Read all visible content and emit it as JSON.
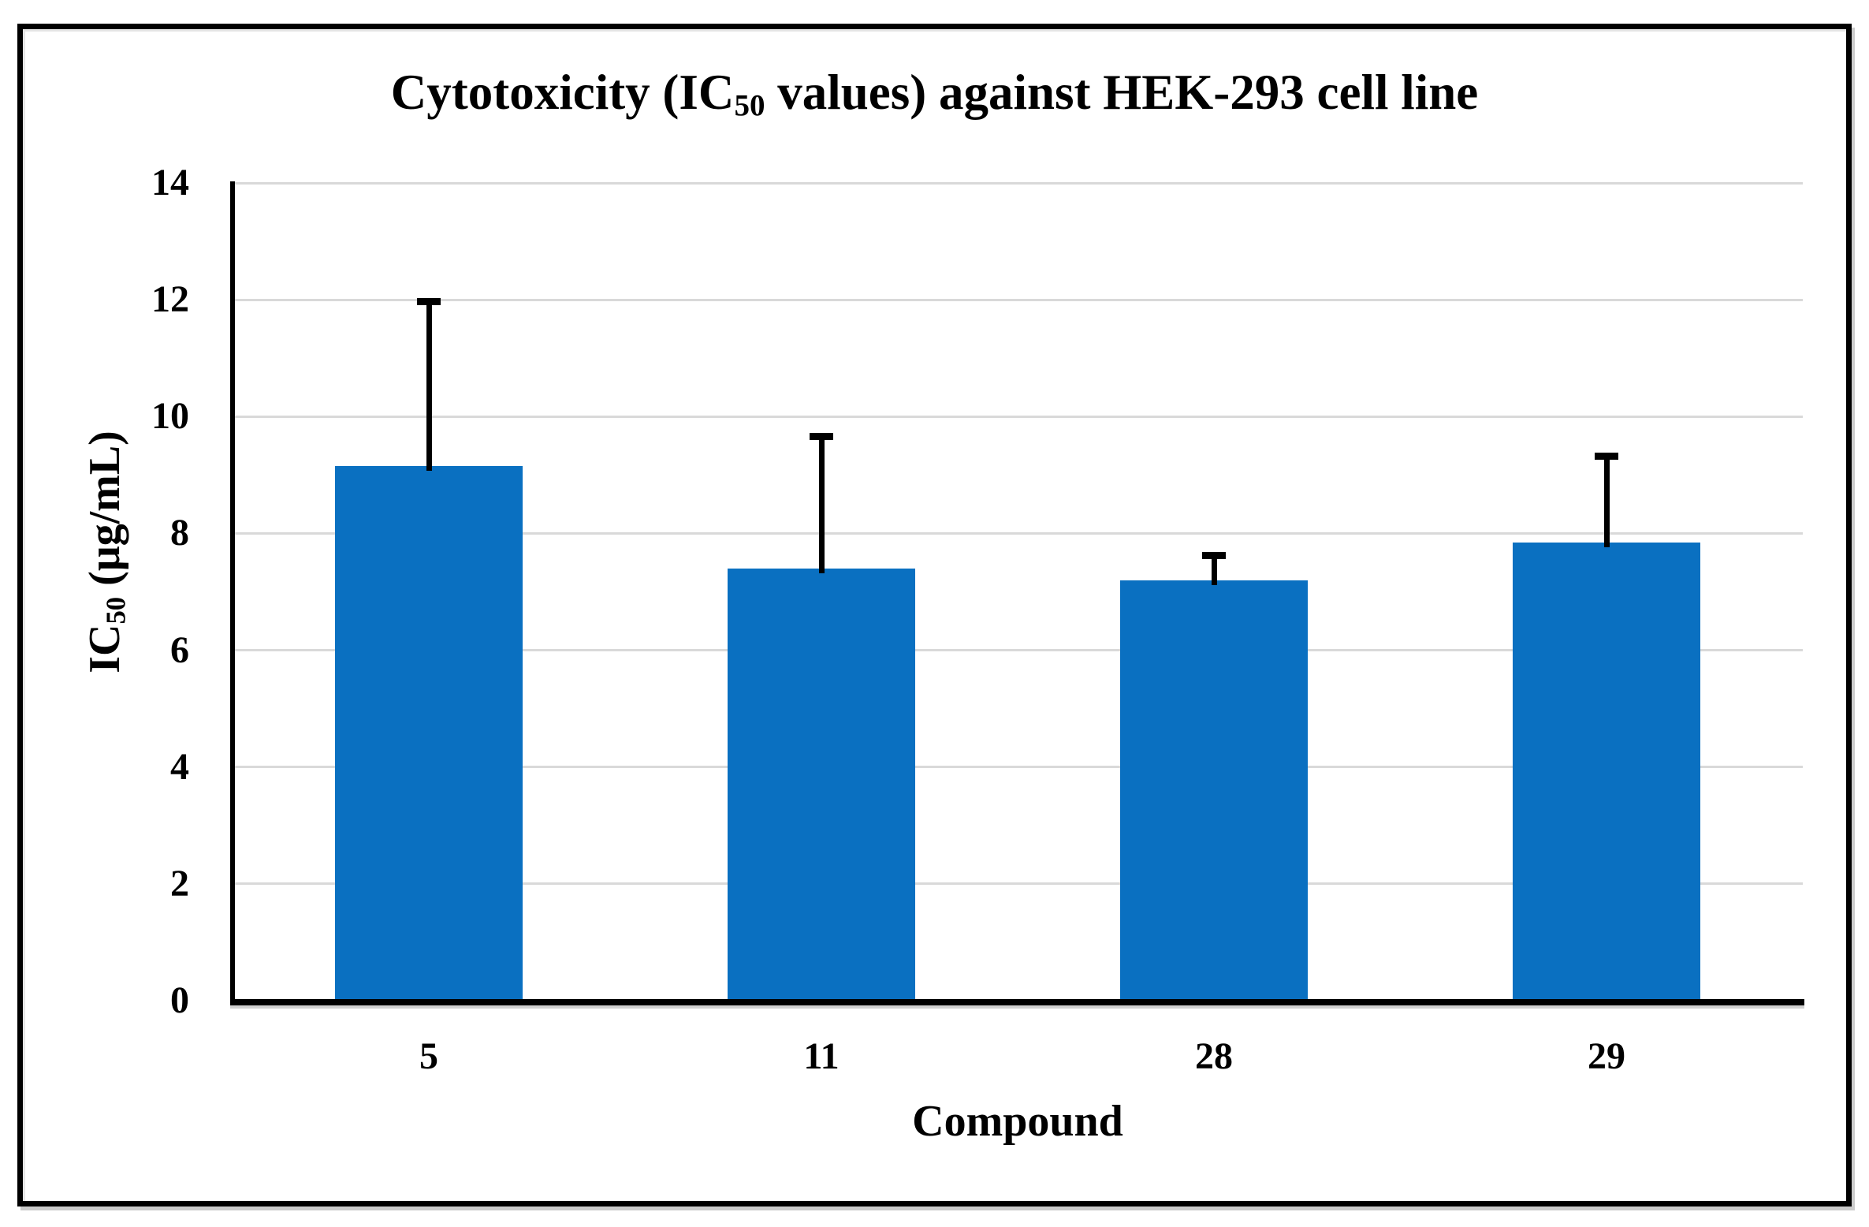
{
  "title": {
    "pre": "Cytotoxicity (IC",
    "sub": "50",
    "post": " values) against HEK-293 cell line",
    "full": "Cytotoxicity (IC50 values) against HEK-293 cell line"
  },
  "y_axis": {
    "pre": "IC",
    "sub": "50",
    "post": " (μg/mL)",
    "full": "IC50 (μg/mL)"
  },
  "chart_data": {
    "type": "bar",
    "title": "Cytotoxicity (IC50 values) against HEK-293 cell line",
    "xlabel": "Compound",
    "ylabel": "IC50 (μg/mL)",
    "categories": [
      "5",
      "11",
      "28",
      "29"
    ],
    "series": [
      {
        "name": "IC50 (μg/mL)",
        "values": [
          9.15,
          7.4,
          7.2,
          7.85
        ],
        "error_plus": [
          2.85,
          2.3,
          0.45,
          1.5
        ]
      }
    ],
    "ylim": [
      0,
      14
    ],
    "yticks": [
      0,
      2,
      4,
      6,
      8,
      10,
      12,
      14
    ],
    "grid": true,
    "legend": "none",
    "colors": {
      "bar": "#0A70C1",
      "gridline": "#D9D9D9",
      "axis": "#000000",
      "error": "#000000",
      "text": "#000000",
      "border": "#000000",
      "background": "#FFFFFF"
    }
  }
}
